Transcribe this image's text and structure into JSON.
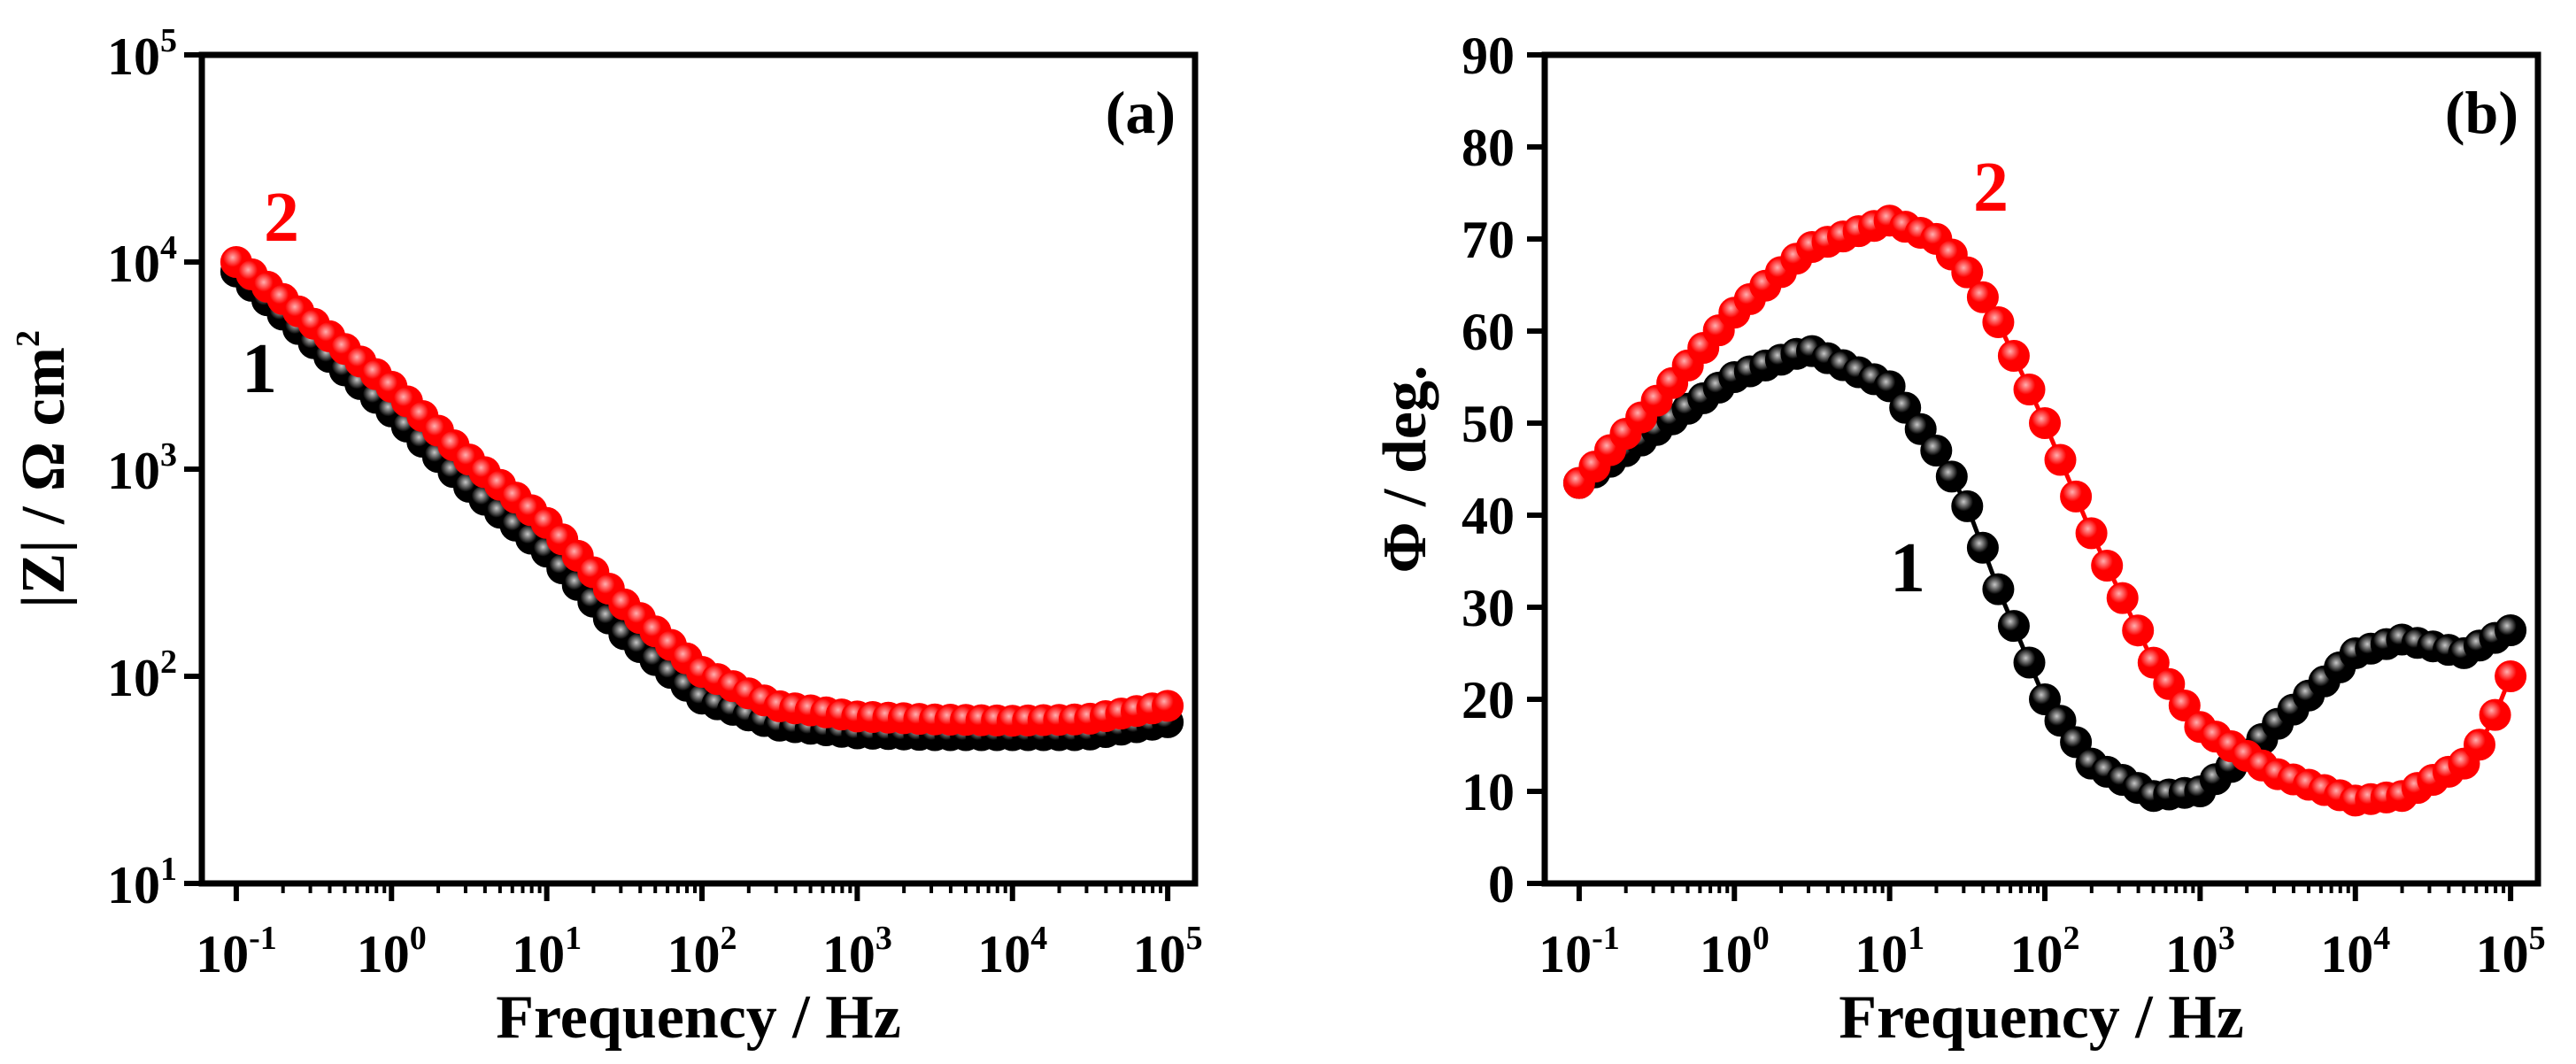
{
  "colors": {
    "series1": "#000000",
    "series2": "#ff0000",
    "axis": "#000000"
  },
  "chart_data": [
    {
      "type": "scatter",
      "panel_label": "(a)",
      "xlabel": "Frequency / Hz",
      "ylabel_base": "|Z| / Ω cm",
      "ylabel_sup": "2",
      "x_scale": "log",
      "y_scale": "log",
      "xlim": [
        0.06,
        150000
      ],
      "ylim": [
        10,
        100000
      ],
      "x_ticks": [
        {
          "base": "10",
          "exp": "-1",
          "value": 0.1
        },
        {
          "base": "10",
          "exp": "0",
          "value": 1
        },
        {
          "base": "10",
          "exp": "1",
          "value": 10
        },
        {
          "base": "10",
          "exp": "2",
          "value": 100
        },
        {
          "base": "10",
          "exp": "3",
          "value": 1000
        },
        {
          "base": "10",
          "exp": "4",
          "value": 10000
        },
        {
          "base": "10",
          "exp": "5",
          "value": 100000
        }
      ],
      "y_ticks": [
        {
          "base": "10",
          "exp": "1",
          "value": 10
        },
        {
          "base": "10",
          "exp": "2",
          "value": 100
        },
        {
          "base": "10",
          "exp": "3",
          "value": 1000
        },
        {
          "base": "10",
          "exp": "4",
          "value": 10000
        },
        {
          "base": "10",
          "exp": "5",
          "value": 100000
        }
      ],
      "grid": false,
      "series": [
        {
          "label": "1",
          "color": "#000000",
          "points": [
            [
              0.1,
              9000
            ],
            [
              0.3,
              4200
            ],
            [
              1,
              1900
            ],
            [
              3,
              850
            ],
            [
              10,
              400
            ],
            [
              30,
              165
            ],
            [
              100,
              78
            ],
            [
              300,
              58
            ],
            [
              1000,
              53
            ],
            [
              3000,
              52
            ],
            [
              10000,
              52
            ],
            [
              30000,
              52
            ],
            [
              100000,
              60
            ]
          ]
        },
        {
          "label": "2",
          "color": "#ff0000",
          "points": [
            [
              0.1,
              10000
            ],
            [
              0.3,
              5200
            ],
            [
              1,
              2500
            ],
            [
              3,
              1150
            ],
            [
              10,
              550
            ],
            [
              30,
              230
            ],
            [
              100,
              105
            ],
            [
              300,
              72
            ],
            [
              1000,
              64
            ],
            [
              3000,
              62
            ],
            [
              10000,
              61
            ],
            [
              30000,
              62
            ],
            [
              100000,
              72
            ]
          ]
        }
      ]
    },
    {
      "type": "scatter",
      "panel_label": "(b)",
      "xlabel": "Frequency / Hz",
      "ylabel": "Φ / deg.",
      "x_scale": "log",
      "y_scale": "linear",
      "xlim": [
        0.06,
        150000
      ],
      "ylim": [
        0,
        90
      ],
      "x_ticks": [
        {
          "base": "10",
          "exp": "-1",
          "value": 0.1
        },
        {
          "base": "10",
          "exp": "0",
          "value": 1
        },
        {
          "base": "10",
          "exp": "1",
          "value": 10
        },
        {
          "base": "10",
          "exp": "2",
          "value": 100
        },
        {
          "base": "10",
          "exp": "3",
          "value": 1000
        },
        {
          "base": "10",
          "exp": "4",
          "value": 10000
        },
        {
          "base": "10",
          "exp": "5",
          "value": 100000
        }
      ],
      "y_ticks": [
        "0",
        "10",
        "20",
        "30",
        "40",
        "50",
        "60",
        "70",
        "80",
        "90"
      ],
      "grid": false,
      "series": [
        {
          "label": "1",
          "color": "#000000",
          "points": [
            [
              0.1,
              43.5
            ],
            [
              0.3,
              49
            ],
            [
              1,
              55
            ],
            [
              3,
              58
            ],
            [
              10,
              54
            ],
            [
              20,
              47
            ],
            [
              30,
              42
            ],
            [
              50,
              32
            ],
            [
              100,
              20
            ],
            [
              200,
              13
            ],
            [
              500,
              9.5
            ],
            [
              1000,
              10
            ],
            [
              2000,
              14
            ],
            [
              3000,
              17
            ],
            [
              10000,
              25
            ],
            [
              20000,
              26.5
            ],
            [
              50000,
              25
            ],
            [
              100000,
              27.5
            ]
          ]
        },
        {
          "label": "2",
          "color": "#ff0000",
          "points": [
            [
              0.1,
              43.5
            ],
            [
              0.3,
              52
            ],
            [
              1,
              62
            ],
            [
              3,
              69
            ],
            [
              10,
              72
            ],
            [
              20,
              70
            ],
            [
              30,
              67
            ],
            [
              50,
              61
            ],
            [
              100,
              50
            ],
            [
              200,
              38
            ],
            [
              500,
              24
            ],
            [
              1000,
              17
            ],
            [
              3000,
              12
            ],
            [
              10000,
              9
            ],
            [
              20000,
              9.5
            ],
            [
              50000,
              13
            ],
            [
              70000,
              16
            ],
            [
              100000,
              22.5
            ]
          ]
        }
      ]
    }
  ]
}
